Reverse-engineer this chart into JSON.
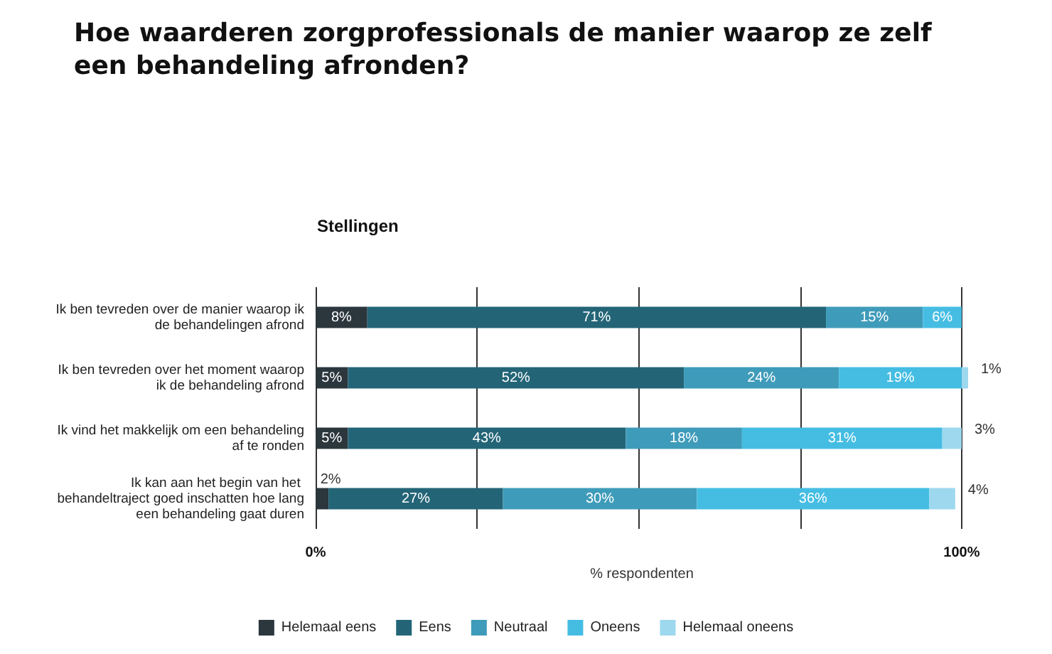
{
  "chart_data": {
    "type": "bar",
    "orientation": "horizontal",
    "stacked": true,
    "title": "Hoe waarderen zorgprofessionals de manier waarop ze zelf een behandeling afronden?",
    "subtitle": "Stellingen",
    "xlabel": "% respondenten",
    "categories": [
      "Ik ben tevreden over de manier waarop ik de behandelingen afrond",
      "Ik ben tevreden over het moment waarop ik de behandeling afrond",
      "Ik vind het makkelijk om een behandeling af te ronden",
      "Ik kan aan het begin van het behandeltraject goed inschatten hoe lang een behandeling gaat duren"
    ],
    "series": [
      {
        "name": "Helemaal eens",
        "color": "#2b363d",
        "values": [
          8,
          5,
          5,
          2
        ],
        "value_labels": [
          "8%",
          "5%",
          "5%",
          "2%"
        ]
      },
      {
        "name": "Eens",
        "color": "#236577",
        "values": [
          71,
          52,
          43,
          27
        ],
        "value_labels": [
          "71%",
          "52%",
          "43%",
          "27%"
        ]
      },
      {
        "name": "Neutraal",
        "color": "#3f9bba",
        "values": [
          15,
          24,
          18,
          30
        ],
        "value_labels": [
          "15%",
          "24%",
          "18%",
          "30%"
        ]
      },
      {
        "name": "Oneens",
        "color": "#45bde3",
        "values": [
          6,
          19,
          31,
          36
        ],
        "value_labels": [
          "6%",
          "19%",
          "31%",
          "36%"
        ]
      },
      {
        "name": "Helemaal oneens",
        "color": "#9dd8ee",
        "values": [
          0,
          1,
          3,
          4
        ],
        "value_labels": [
          null,
          "1%",
          "3%",
          "4%"
        ]
      }
    ],
    "xlim": [
      0,
      101
    ],
    "xticks": [
      {
        "value": 0,
        "label": "0%"
      },
      {
        "value": 25,
        "label": null
      },
      {
        "value": 50,
        "label": null
      },
      {
        "value": 75,
        "label": null
      },
      {
        "value": 100,
        "label": "100%"
      }
    ],
    "grid": "x",
    "legend": "bottom"
  }
}
